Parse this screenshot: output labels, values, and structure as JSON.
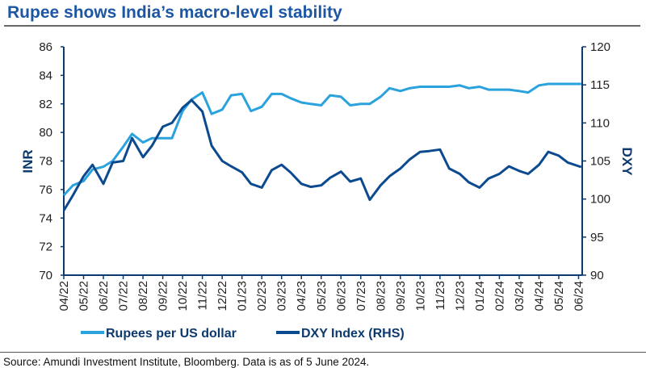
{
  "title": "Rupee shows India’s macro-level stability",
  "source": "Source: Amundi Investment Institute, Bloomberg. Data is as of 5 June 2024.",
  "chart_data": {
    "type": "line",
    "title": "Rupee shows India’s macro-level stability",
    "ylabel": "INR",
    "y2label": "DXY",
    "ylim": [
      70,
      86
    ],
    "y2lim": [
      90,
      120
    ],
    "yticks": [
      70,
      72,
      74,
      76,
      78,
      80,
      82,
      84,
      86
    ],
    "y2ticks": [
      90,
      95,
      100,
      105,
      110,
      115,
      120
    ],
    "xtick_labels": [
      "04/22",
      "05/22",
      "06/22",
      "07/22",
      "08/22",
      "09/22",
      "10/22",
      "11/22",
      "12/22",
      "01/23",
      "02/23",
      "03/23",
      "04/23",
      "05/23",
      "06/23",
      "07/23",
      "08/23",
      "09/23",
      "10/23",
      "11/23",
      "12/23",
      "01/24",
      "02/24",
      "03/24",
      "04/24",
      "05/24",
      "06/24"
    ],
    "grid": false,
    "legend_position": "bottom",
    "x": [
      "2022-04-01",
      "2022-04-15",
      "2022-05-01",
      "2022-05-15",
      "2022-06-01",
      "2022-06-15",
      "2022-07-01",
      "2022-07-15",
      "2022-08-01",
      "2022-08-15",
      "2022-09-01",
      "2022-09-15",
      "2022-10-01",
      "2022-10-15",
      "2022-11-01",
      "2022-11-15",
      "2022-12-01",
      "2022-12-15",
      "2023-01-01",
      "2023-01-15",
      "2023-02-01",
      "2023-02-15",
      "2023-03-01",
      "2023-03-15",
      "2023-04-01",
      "2023-04-15",
      "2023-05-01",
      "2023-05-15",
      "2023-06-01",
      "2023-06-15",
      "2023-07-01",
      "2023-07-15",
      "2023-08-01",
      "2023-08-15",
      "2023-09-01",
      "2023-09-15",
      "2023-10-01",
      "2023-10-15",
      "2023-11-01",
      "2023-11-15",
      "2023-12-01",
      "2023-12-15",
      "2024-01-01",
      "2024-01-15",
      "2024-02-01",
      "2024-02-15",
      "2024-03-01",
      "2024-03-15",
      "2024-04-01",
      "2024-04-15",
      "2024-05-01",
      "2024-05-15",
      "2024-06-05"
    ],
    "series": [
      {
        "name": "Rupees per US dollar",
        "axis": "left",
        "color": "#2aa2de",
        "values": [
          75.6,
          76.3,
          76.6,
          77.4,
          77.6,
          78.0,
          79.0,
          79.9,
          79.3,
          79.6,
          79.6,
          79.6,
          81.5,
          82.3,
          82.8,
          81.3,
          81.6,
          82.6,
          82.7,
          81.5,
          81.8,
          82.7,
          82.7,
          82.4,
          82.1,
          82.0,
          81.9,
          82.6,
          82.5,
          81.9,
          82.0,
          82.0,
          82.5,
          83.1,
          82.9,
          83.1,
          83.2,
          83.2,
          83.2,
          83.2,
          83.3,
          83.1,
          83.2,
          83.0,
          83.0,
          83.0,
          82.9,
          82.8,
          83.3,
          83.4,
          83.4,
          83.4,
          83.4
        ]
      },
      {
        "name": "DXY Index (RHS)",
        "axis": "right",
        "color": "#0c4a8f",
        "values": [
          98.5,
          100.5,
          103.0,
          104.5,
          102.0,
          104.8,
          105.0,
          108.0,
          105.5,
          107.0,
          109.5,
          110.0,
          112.0,
          113.0,
          111.5,
          107.0,
          105.0,
          104.3,
          103.5,
          102.0,
          101.5,
          103.8,
          104.5,
          103.5,
          102.0,
          101.6,
          101.8,
          102.8,
          103.6,
          102.3,
          102.7,
          99.9,
          101.8,
          103.0,
          104.0,
          105.2,
          106.2,
          106.3,
          106.5,
          104.0,
          103.3,
          102.2,
          101.5,
          102.7,
          103.3,
          104.3,
          103.7,
          103.3,
          104.5,
          106.2,
          105.7,
          104.8,
          104.2
        ]
      }
    ]
  }
}
